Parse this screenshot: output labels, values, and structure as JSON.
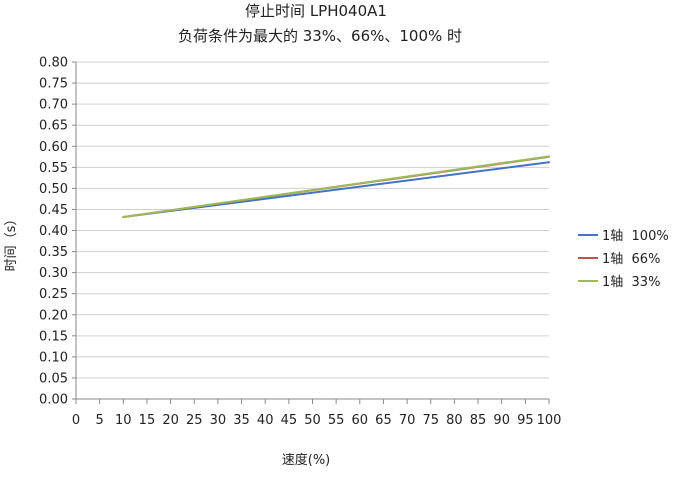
{
  "chart_data": {
    "type": "line",
    "title": "停止时间 LPH040A1",
    "subtitle": "负荷条件为最大的 33%、66%、100% 时",
    "xlabel": "速度(%)",
    "ylabel": "时间（s）",
    "xlim": [
      0,
      100
    ],
    "ylim": [
      0,
      0.8
    ],
    "x_ticks": [
      "0",
      "5",
      "10",
      "15",
      "20",
      "25",
      "30",
      "35",
      "40",
      "45",
      "50",
      "55",
      "60",
      "65",
      "70",
      "75",
      "80",
      "85",
      "90",
      "95",
      "100"
    ],
    "y_ticks": [
      "0.00",
      "0.05",
      "0.10",
      "0.15",
      "0.20",
      "0.25",
      "0.30",
      "0.35",
      "0.40",
      "0.45",
      "0.50",
      "0.55",
      "0.60",
      "0.65",
      "0.70",
      "0.75",
      "0.80"
    ],
    "grid": "horizontal",
    "legend_position": "right",
    "series": [
      {
        "name": "1轴  100%",
        "color": "#4472C4",
        "x": [
          10,
          100
        ],
        "y": [
          0.432,
          0.562
        ]
      },
      {
        "name": "1轴  66%",
        "color": "#C0504D",
        "x": [
          10,
          100
        ],
        "y": [
          0.432,
          0.575
        ]
      },
      {
        "name": "1轴  33%",
        "color": "#9BBB59",
        "x": [
          10,
          100
        ],
        "y": [
          0.432,
          0.576
        ]
      }
    ]
  }
}
